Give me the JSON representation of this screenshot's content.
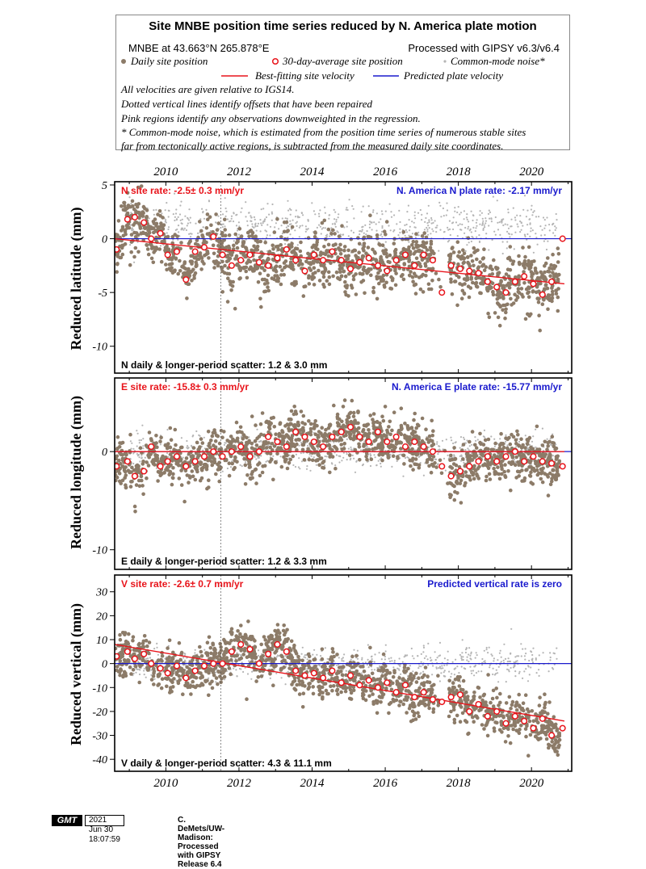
{
  "title": "Site MNBE position time series reduced by N. America plate motion",
  "site_location": "MNBE at 43.663°N 265.878°E",
  "processing": "Processed with GIPSY v6.3/v6.4",
  "legend": {
    "daily": "Daily site position",
    "avg30": "30-day-average site position",
    "common_mode": "Common-mode noise*",
    "best_fit": "Best-fitting site velocity",
    "predicted": "Predicted plate velocity"
  },
  "notes": [
    "All velocities are given relative to IGS14.",
    "Dotted vertical lines identify offsets that have been repaired",
    "Pink regions identify any observations downweighted in the regression.",
    "* Common-mode noise, which is estimated from the position time series of numerous stable sites",
    "far from tectonically active regions, is subtracted from the measured daily site coordinates."
  ],
  "colors": {
    "daily": "#8c7b68",
    "common_mode": "#b5b5b5",
    "avg_stroke": "#e8141b",
    "best_fit": "#e8141b",
    "predicted": "#1a1acd",
    "rate_text": "#e8141b",
    "plate_text": "#1a1acd"
  },
  "footer": {
    "logo": "GMT",
    "date": "2021 Jun 30 18:07:59",
    "credit": "C. DeMets/UW-Madison: Processed with GIPSY Release 6.4"
  },
  "chart_data": {
    "type": "scatter",
    "x_range": [
      2008.6,
      2021.1
    ],
    "x_ticks": [
      2010,
      2012,
      2014,
      2016,
      2018,
      2020
    ],
    "offset_lines": [
      2011.5
    ],
    "panels": [
      {
        "id": "north",
        "ylabel": "Reduced latitude (mm)",
        "y_range": [
          -12.5,
          5.3
        ],
        "y_ticks": [
          5,
          0,
          -5,
          -10
        ],
        "site_rate": "N site rate:  -2.5± 0.3 mm/yr",
        "plate_rate": "N. America N plate rate: -2.17 mm/yr",
        "scatter": "N daily & longer-period scatter:   1.2 &   3.0 mm",
        "fit_line": [
          [
            2008.6,
            0.0
          ],
          [
            2020.9,
            -4.2
          ]
        ],
        "plate_line": 0,
        "averages": [
          [
            2008.65,
            -1.0
          ],
          [
            2008.95,
            1.8
          ],
          [
            2009.15,
            2.0
          ],
          [
            2009.4,
            1.5
          ],
          [
            2009.6,
            0.0
          ],
          [
            2009.85,
            0.5
          ],
          [
            2010.05,
            -1.5
          ],
          [
            2010.3,
            -1.2
          ],
          [
            2010.55,
            -3.8
          ],
          [
            2010.8,
            -1.2
          ],
          [
            2011.05,
            -0.8
          ],
          [
            2011.3,
            0.2
          ],
          [
            2011.55,
            -1.5
          ],
          [
            2011.8,
            -2.5
          ],
          [
            2012.05,
            -2.0
          ],
          [
            2012.3,
            -1.5
          ],
          [
            2012.55,
            -2.2
          ],
          [
            2012.8,
            -2.5
          ],
          [
            2013.05,
            -1.8
          ],
          [
            2013.3,
            -1.0
          ],
          [
            2013.55,
            -2.0
          ],
          [
            2013.8,
            -3.0
          ],
          [
            2014.05,
            -1.5
          ],
          [
            2014.3,
            -2.0
          ],
          [
            2014.55,
            -1.2
          ],
          [
            2014.8,
            -2.0
          ],
          [
            2015.05,
            -2.8
          ],
          [
            2015.3,
            -2.2
          ],
          [
            2015.55,
            -1.8
          ],
          [
            2015.8,
            -2.5
          ],
          [
            2016.05,
            -3.0
          ],
          [
            2016.3,
            -2.0
          ],
          [
            2016.55,
            -1.5
          ],
          [
            2016.8,
            -2.5
          ],
          [
            2017.05,
            -1.5
          ],
          [
            2017.3,
            -2.0
          ],
          [
            2017.55,
            -5.0
          ],
          [
            2017.8,
            -2.5
          ],
          [
            2018.05,
            -2.8
          ],
          [
            2018.3,
            -3.0
          ],
          [
            2018.55,
            -3.2
          ],
          [
            2018.8,
            -4.0
          ],
          [
            2019.05,
            -4.5
          ],
          [
            2019.3,
            -5.0
          ],
          [
            2019.55,
            -4.0
          ],
          [
            2019.8,
            -3.5
          ],
          [
            2020.05,
            -4.2
          ],
          [
            2020.3,
            -5.2
          ],
          [
            2020.55,
            -4.0
          ],
          [
            2020.85,
            0.0
          ]
        ]
      },
      {
        "id": "east",
        "ylabel": "Reduced longitude (mm)",
        "y_range": [
          -12.0,
          7.5
        ],
        "y_ticks": [
          0,
          -10
        ],
        "site_rate": "E site rate: -15.8± 0.3 mm/yr",
        "plate_rate": "N. America E plate rate: -15.77 mm/yr",
        "scatter": "E daily & longer-period scatter:   1.2 &   3.3 mm",
        "fit_line": [
          [
            2008.6,
            0.0
          ],
          [
            2020.9,
            0.0
          ]
        ],
        "plate_line": 0,
        "averages": [
          [
            2008.65,
            -1.5
          ],
          [
            2008.95,
            -1.0
          ],
          [
            2009.15,
            -2.5
          ],
          [
            2009.4,
            -2.0
          ],
          [
            2009.6,
            0.5
          ],
          [
            2009.85,
            -1.5
          ],
          [
            2010.05,
            -1.0
          ],
          [
            2010.3,
            -0.5
          ],
          [
            2010.55,
            -1.5
          ],
          [
            2010.8,
            -1.0
          ],
          [
            2011.05,
            -0.5
          ],
          [
            2011.3,
            0.0
          ],
          [
            2011.55,
            -0.5
          ],
          [
            2011.8,
            0.0
          ],
          [
            2012.05,
            0.5
          ],
          [
            2012.3,
            -0.5
          ],
          [
            2012.55,
            0.0
          ],
          [
            2012.8,
            1.5
          ],
          [
            2013.05,
            1.0
          ],
          [
            2013.3,
            0.5
          ],
          [
            2013.55,
            2.0
          ],
          [
            2013.8,
            1.5
          ],
          [
            2014.05,
            1.0
          ],
          [
            2014.3,
            0.5
          ],
          [
            2014.55,
            1.5
          ],
          [
            2014.8,
            2.0
          ],
          [
            2015.05,
            2.5
          ],
          [
            2015.3,
            1.5
          ],
          [
            2015.55,
            1.0
          ],
          [
            2015.8,
            2.0
          ],
          [
            2016.05,
            1.0
          ],
          [
            2016.3,
            1.5
          ],
          [
            2016.55,
            0.5
          ],
          [
            2016.8,
            1.0
          ],
          [
            2017.05,
            0.5
          ],
          [
            2017.3,
            0.0
          ],
          [
            2017.55,
            -1.5
          ],
          [
            2017.8,
            -2.5
          ],
          [
            2018.05,
            -2.0
          ],
          [
            2018.3,
            -1.5
          ],
          [
            2018.55,
            -1.0
          ],
          [
            2018.8,
            -0.5
          ],
          [
            2019.05,
            -1.0
          ],
          [
            2019.3,
            -0.5
          ],
          [
            2019.55,
            0.0
          ],
          [
            2019.8,
            -1.0
          ],
          [
            2020.05,
            -0.5
          ],
          [
            2020.3,
            -1.0
          ],
          [
            2020.55,
            -1.2
          ],
          [
            2020.85,
            -1.5
          ]
        ]
      },
      {
        "id": "vertical",
        "ylabel": "Reduced vertical (mm)",
        "y_range": [
          -45,
          37
        ],
        "y_ticks": [
          30,
          20,
          10,
          0,
          -10,
          -20,
          -30,
          -40
        ],
        "site_rate": "V site rate:  -2.6± 0.7 mm/yr",
        "plate_rate": "Predicted vertical rate is zero",
        "scatter": "V daily & longer-period scatter:   4.3 &  11.1 mm",
        "fit_line": [
          [
            2008.6,
            8.0
          ],
          [
            2020.9,
            -24.0
          ]
        ],
        "plate_line": 0,
        "averages": [
          [
            2008.65,
            3.0
          ],
          [
            2008.95,
            5.0
          ],
          [
            2009.15,
            2.0
          ],
          [
            2009.4,
            4.0
          ],
          [
            2009.6,
            0.0
          ],
          [
            2009.85,
            -2.0
          ],
          [
            2010.05,
            -4.0
          ],
          [
            2010.3,
            -1.0
          ],
          [
            2010.55,
            -6.0
          ],
          [
            2010.8,
            -3.0
          ],
          [
            2011.05,
            -1.0
          ],
          [
            2011.3,
            0.0
          ],
          [
            2011.55,
            0.0
          ],
          [
            2011.8,
            5.0
          ],
          [
            2012.05,
            8.0
          ],
          [
            2012.3,
            6.0
          ],
          [
            2012.55,
            0.0
          ],
          [
            2012.8,
            4.0
          ],
          [
            2013.05,
            8.0
          ],
          [
            2013.3,
            5.0
          ],
          [
            2013.55,
            -3.0
          ],
          [
            2013.8,
            -5.0
          ],
          [
            2014.05,
            -4.0
          ],
          [
            2014.3,
            -6.0
          ],
          [
            2014.55,
            -3.0
          ],
          [
            2014.8,
            -8.0
          ],
          [
            2015.05,
            -5.0
          ],
          [
            2015.3,
            -9.0
          ],
          [
            2015.55,
            -7.0
          ],
          [
            2015.8,
            -10.0
          ],
          [
            2016.05,
            -8.0
          ],
          [
            2016.3,
            -12.0
          ],
          [
            2016.55,
            -9.0
          ],
          [
            2016.8,
            -14.0
          ],
          [
            2017.05,
            -12.0
          ],
          [
            2017.3,
            -15.0
          ],
          [
            2017.55,
            -16.0
          ],
          [
            2017.8,
            -14.0
          ],
          [
            2018.05,
            -13.0
          ],
          [
            2018.3,
            -20.0
          ],
          [
            2018.55,
            -17.0
          ],
          [
            2018.8,
            -22.0
          ],
          [
            2019.05,
            -20.0
          ],
          [
            2019.3,
            -25.0
          ],
          [
            2019.55,
            -22.0
          ],
          [
            2019.8,
            -24.0
          ],
          [
            2020.05,
            -27.0
          ],
          [
            2020.3,
            -23.0
          ],
          [
            2020.55,
            -30.0
          ],
          [
            2020.85,
            -27.0
          ]
        ]
      }
    ]
  }
}
